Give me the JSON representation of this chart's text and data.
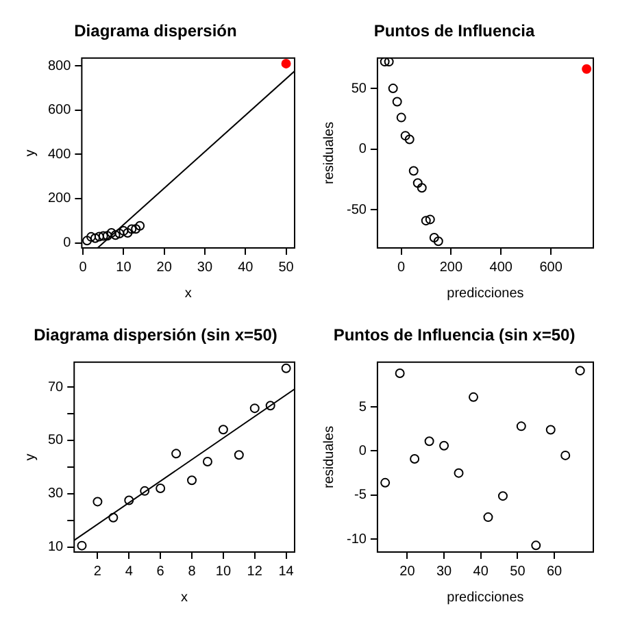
{
  "chart_data": [
    {
      "type": "scatter",
      "title": "Diagrama dispersión",
      "xlabel": "x",
      "ylabel": "y",
      "marker": "circle",
      "grid": false,
      "legend": false,
      "xlim": [
        -0.3,
        52.1
      ],
      "ylim": [
        -23,
        835
      ],
      "xticks": [
        0,
        10,
        20,
        30,
        40,
        50
      ],
      "yticks": [
        0,
        200,
        400,
        600,
        800
      ],
      "series": [
        {
          "color": "#000000",
          "x": [
            1,
            2,
            3,
            4,
            5,
            6,
            7,
            8,
            9,
            10,
            11,
            12,
            13,
            14
          ],
          "values": [
            10,
            27,
            21,
            28,
            31,
            32,
            45,
            35,
            42,
            54,
            45,
            62,
            63,
            77
          ]
        },
        {
          "color": "#ff0000",
          "x": [
            50
          ],
          "values": [
            810
          ]
        },
        {
          "type": "line",
          "marker": "none",
          "color": "#000000",
          "x": [
            3.6,
            52.1
          ],
          "values": [
            -23,
            776
          ]
        }
      ]
    },
    {
      "type": "scatter",
      "title": "Puntos de Influencia",
      "xlabel": "predicciones",
      "ylabel": "residuales",
      "marker": "circle",
      "grid": false,
      "legend": false,
      "xlim": [
        -95,
        770
      ],
      "ylim": [
        -81.5,
        75
      ],
      "xticks": [
        0,
        200,
        400,
        600
      ],
      "yticks": [
        -50,
        0,
        50
      ],
      "series": [
        {
          "color": "#000000",
          "x": [
            -65.5,
            -49,
            -32.5,
            -16,
            0.5,
            17,
            33.5,
            50,
            66.5,
            83,
            99.5,
            116,
            132.5,
            149
          ],
          "values": [
            72,
            72,
            50,
            39,
            26,
            11,
            8,
            -18,
            -28,
            -32,
            -59,
            -58,
            -73,
            -76
          ]
        },
        {
          "color": "#ff0000",
          "x": [
            743
          ],
          "values": [
            66
          ]
        }
      ]
    },
    {
      "type": "scatter",
      "title": "Diagrama dispersión (sin x=50)",
      "xlabel": "x",
      "ylabel": "y",
      "marker": "circle",
      "grid": false,
      "legend": false,
      "xlim": [
        0.51,
        14.54
      ],
      "ylim": [
        8.1,
        79.3
      ],
      "xticks": [
        2,
        4,
        6,
        8,
        10,
        12,
        14
      ],
      "yticks": [
        10,
        {
          "value": 20,
          "label": null
        },
        30,
        {
          "value": 40,
          "label": null
        },
        50,
        {
          "value": 60,
          "label": null
        },
        70
      ],
      "series": [
        {
          "color": "#000000",
          "x": [
            1,
            2,
            3,
            4,
            5,
            6,
            7,
            8,
            9,
            10,
            11,
            12,
            13,
            14
          ],
          "values": [
            10.5,
            27,
            21,
            27.5,
            31,
            32,
            45,
            35,
            42,
            54,
            44.5,
            62,
            63,
            77
          ]
        },
        {
          "type": "line",
          "marker": "none",
          "color": "#000000",
          "x": [
            0.51,
            14.54
          ],
          "values": [
            12.5,
            69.2
          ]
        }
      ]
    },
    {
      "type": "scatter",
      "title": "Puntos de Influencia (sin x=50)",
      "xlabel": "predicciones",
      "ylabel": "residuales",
      "marker": "circle",
      "grid": false,
      "legend": false,
      "xlim": [
        11.9,
        70.6
      ],
      "ylim": [
        -11.45,
        10.06
      ],
      "xticks": [
        20,
        30,
        40,
        50,
        60
      ],
      "yticks": [
        -10,
        -5,
        0,
        5
      ],
      "series": [
        {
          "color": "#000000",
          "x": [
            14,
            18,
            22,
            26,
            30,
            34,
            38,
            42,
            46,
            51,
            55,
            59,
            63,
            67
          ],
          "values": [
            -3.6,
            8.8,
            -0.9,
            1.1,
            0.6,
            -2.5,
            6.1,
            -7.5,
            -5.1,
            2.8,
            -10.7,
            2.4,
            -0.5,
            9.1
          ]
        }
      ]
    }
  ]
}
